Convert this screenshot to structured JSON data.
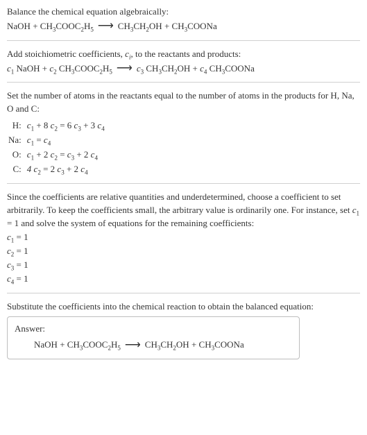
{
  "section1": {
    "title": "Balance the chemical equation algebraically:",
    "reactant1": "NaOH",
    "reactant2_a": "CH",
    "reactant2_a_sub": "3",
    "reactant2_b": "COOC",
    "reactant2_b_sub": "2",
    "reactant2_c": "H",
    "reactant2_c_sub": "5",
    "product1_a": "CH",
    "product1_a_sub": "3",
    "product1_b": "CH",
    "product1_b_sub": "2",
    "product1_c": "OH",
    "product2_a": "CH",
    "product2_a_sub": "3",
    "product2_b": "COONa"
  },
  "section2": {
    "title_a": "Add stoichiometric coefficients, ",
    "title_var": "c",
    "title_var_sub": "i",
    "title_b": ", to the reactants and products:",
    "c1": "c",
    "c1_sub": "1",
    "c2": "c",
    "c2_sub": "2",
    "c3": "c",
    "c3_sub": "3",
    "c4": "c",
    "c4_sub": "4"
  },
  "section3": {
    "title": "Set the number of atoms in the reactants equal to the number of atoms in the products for H, Na, O and C:",
    "rows": [
      {
        "label": "H:",
        "lhs_a": "c",
        "lhs_a_sub": "1",
        "lhs_mid": " + 8 ",
        "lhs_b": "c",
        "lhs_b_sub": "2",
        "eq": " = 6 ",
        "rhs_a": "c",
        "rhs_a_sub": "3",
        "rhs_mid": " + 3 ",
        "rhs_b": "c",
        "rhs_b_sub": "4"
      },
      {
        "label": "Na:",
        "lhs_a": "c",
        "lhs_a_sub": "1",
        "lhs_mid": "",
        "lhs_b": "",
        "lhs_b_sub": "",
        "eq": " = ",
        "rhs_a": "c",
        "rhs_a_sub": "4",
        "rhs_mid": "",
        "rhs_b": "",
        "rhs_b_sub": ""
      },
      {
        "label": "O:",
        "lhs_a": "c",
        "lhs_a_sub": "1",
        "lhs_mid": " + 2 ",
        "lhs_b": "c",
        "lhs_b_sub": "2",
        "eq": " = ",
        "rhs_a": "c",
        "rhs_a_sub": "3",
        "rhs_mid": " + 2 ",
        "rhs_b": "c",
        "rhs_b_sub": "4"
      },
      {
        "label": "C:",
        "lhs_a": "4 c",
        "lhs_a_sub": "2",
        "lhs_mid": "",
        "lhs_b": "",
        "lhs_b_sub": "",
        "eq": " = 2 ",
        "rhs_a": "c",
        "rhs_a_sub": "3",
        "rhs_mid": " + 2 ",
        "rhs_b": "c",
        "rhs_b_sub": "4"
      }
    ]
  },
  "section4": {
    "text_a": "Since the coefficients are relative quantities and underdetermined, choose a coefficient to set arbitrarily. To keep the coefficients small, the arbitrary value is ordinarily one. For instance, set ",
    "var": "c",
    "var_sub": "1",
    "text_b": " = 1 and solve the system of equations for the remaining coefficients:",
    "results": [
      {
        "var": "c",
        "sub": "1",
        "val": " = 1"
      },
      {
        "var": "c",
        "sub": "2",
        "val": " = 1"
      },
      {
        "var": "c",
        "sub": "3",
        "val": " = 1"
      },
      {
        "var": "c",
        "sub": "4",
        "val": " = 1"
      }
    ]
  },
  "section5": {
    "text": "Substitute the coefficients into the chemical reaction to obtain the balanced equation:",
    "answer_label": "Answer:"
  },
  "plus": " + ",
  "space": " "
}
